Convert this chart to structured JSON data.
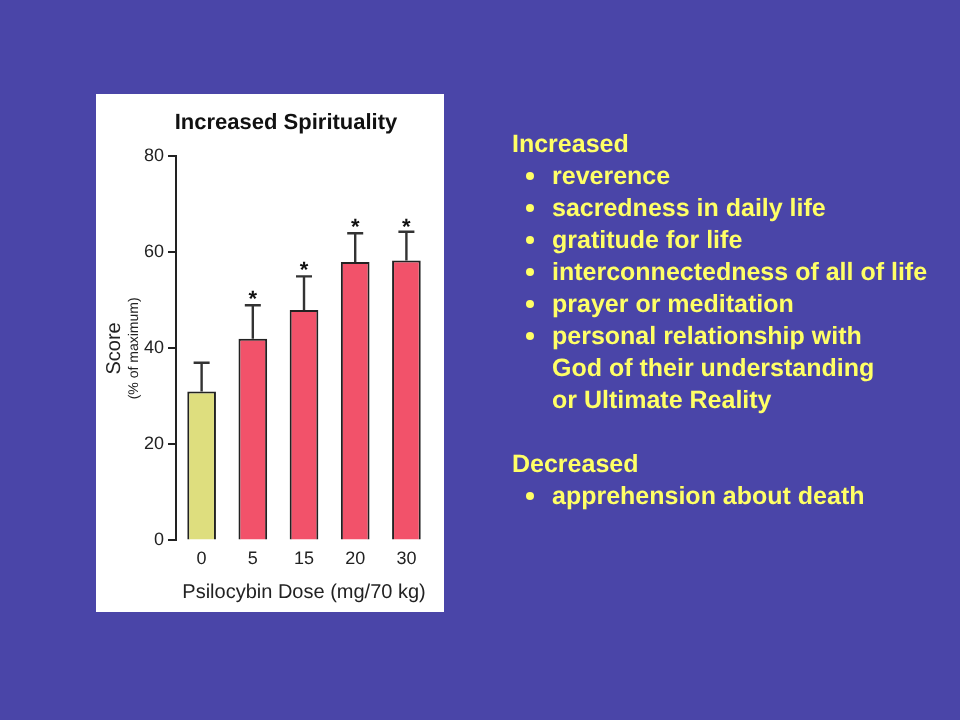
{
  "chart_data": {
    "type": "bar",
    "title": "Increased Spirituality",
    "xlabel": "Psilocybin Dose (mg/70 kg)",
    "ylabel": "Score\n(% of maximum)",
    "categories": [
      "0",
      "5",
      "15",
      "20",
      "30"
    ],
    "values": [
      31,
      42,
      48,
      58,
      58.3
    ],
    "colors": [
      "#dede7e",
      "#f2526a",
      "#f2526a",
      "#f2526a",
      "#f2526a"
    ],
    "errors": [
      6,
      7,
      7,
      6,
      6
    ],
    "ylim": [
      0,
      80
    ],
    "yticks": [
      0,
      20,
      40,
      60,
      80
    ],
    "grid": false,
    "legend": false,
    "annotations": [
      {
        "text": "*",
        "x": "5",
        "y": 49
      },
      {
        "text": "*",
        "x": "15",
        "y": 55
      },
      {
        "text": "*",
        "x": "20",
        "y": 64
      },
      {
        "text": "*",
        "x": "30",
        "y": 64
      },
      "Increased",
      "reverence",
      "sacredness in daily life",
      "gratitude for life",
      "interconnectedness of all of life",
      "prayer or meditation",
      "personal relationship with God of their understanding or Ultimate Reality",
      "Decreased",
      "apprehension about death"
    ]
  }
}
